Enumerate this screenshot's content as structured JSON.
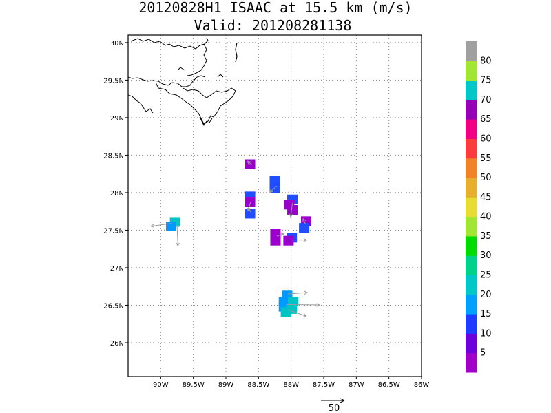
{
  "title": {
    "line1": "20120828H1 ISAAC at 15.5 km (m/s)",
    "line2": "Valid: 201208281138"
  },
  "map": {
    "lon_range": [
      -90.5,
      -86.0
    ],
    "lat_range": [
      25.55,
      30.1
    ],
    "x_ticks": [
      {
        "lon": -90.0,
        "label": "90W"
      },
      {
        "lon": -89.5,
        "label": "89.5W"
      },
      {
        "lon": -89.0,
        "label": "89W"
      },
      {
        "lon": -88.5,
        "label": "88.5W"
      },
      {
        "lon": -88.0,
        "label": "88W"
      },
      {
        "lon": -87.5,
        "label": "87.5W"
      },
      {
        "lon": -87.0,
        "label": "87W"
      },
      {
        "lon": -86.5,
        "label": "86.5W"
      },
      {
        "lon": -86.0,
        "label": "86W"
      }
    ],
    "y_ticks": [
      {
        "lat": 26.0,
        "label": "26N"
      },
      {
        "lat": 26.5,
        "label": "26.5N"
      },
      {
        "lat": 27.0,
        "label": "27N"
      },
      {
        "lat": 27.5,
        "label": "27.5N"
      },
      {
        "lat": 28.0,
        "label": "28N"
      },
      {
        "lat": 28.5,
        "label": "28.5N"
      },
      {
        "lat": 29.0,
        "label": "29N"
      },
      {
        "lat": 29.5,
        "label": "29.5N"
      },
      {
        "lat": 30.0,
        "label": "30N"
      }
    ],
    "grid": "dotted",
    "coastline_color": "#000000",
    "cells": [
      {
        "lon": -88.63,
        "lat": 28.38,
        "color": "#9900cc"
      },
      {
        "lon": -88.25,
        "lat": 28.16,
        "color": "#1f4dff"
      },
      {
        "lon": -88.25,
        "lat": 28.06,
        "color": "#1f4dff"
      },
      {
        "lon": -88.63,
        "lat": 27.95,
        "color": "#1f4dff"
      },
      {
        "lon": -88.63,
        "lat": 27.88,
        "color": "#9900cc"
      },
      {
        "lon": -88.63,
        "lat": 27.72,
        "color": "#1f4dff"
      },
      {
        "lon": -87.98,
        "lat": 27.91,
        "color": "#1f4dff"
      },
      {
        "lon": -88.03,
        "lat": 27.84,
        "color": "#9900cc"
      },
      {
        "lon": -87.98,
        "lat": 27.77,
        "color": "#9900cc"
      },
      {
        "lon": -87.77,
        "lat": 27.62,
        "color": "#9900cc"
      },
      {
        "lon": -87.8,
        "lat": 27.53,
        "color": "#1f4dff"
      },
      {
        "lon": -88.24,
        "lat": 27.45,
        "color": "#9900cc"
      },
      {
        "lon": -88.24,
        "lat": 27.36,
        "color": "#9900cc"
      },
      {
        "lon": -87.99,
        "lat": 27.4,
        "color": "#1f4dff"
      },
      {
        "lon": -88.04,
        "lat": 27.36,
        "color": "#9900cc"
      },
      {
        "lon": -89.78,
        "lat": 27.61,
        "color": "#00c4c4"
      },
      {
        "lon": -89.84,
        "lat": 27.55,
        "color": "#0099ff"
      },
      {
        "lon": -88.06,
        "lat": 26.63,
        "color": "#0099ff"
      },
      {
        "lon": -88.11,
        "lat": 26.55,
        "color": "#0099ff"
      },
      {
        "lon": -88.11,
        "lat": 26.48,
        "color": "#0099ff"
      },
      {
        "lon": -88.04,
        "lat": 26.48,
        "color": "#0099ff"
      },
      {
        "lon": -88.08,
        "lat": 26.41,
        "color": "#00c4c4"
      },
      {
        "lon": -87.99,
        "lat": 26.45,
        "color": "#00c4c4"
      },
      {
        "lon": -87.97,
        "lat": 26.55,
        "color": "#00c4c4"
      }
    ],
    "vectors": [
      {
        "lon": -88.6,
        "lat": 28.37,
        "u": -10,
        "v": 8
      },
      {
        "lon": -88.22,
        "lat": 28.09,
        "u": -15,
        "v": -14
      },
      {
        "lon": -88.62,
        "lat": 27.88,
        "u": -6,
        "v": -20
      },
      {
        "lon": -88.62,
        "lat": 27.74,
        "u": -5,
        "v": 10
      },
      {
        "lon": -87.98,
        "lat": 27.86,
        "u": -4,
        "v": -30
      },
      {
        "lon": -87.78,
        "lat": 27.58,
        "u": -5,
        "v": 12
      },
      {
        "lon": -89.83,
        "lat": 27.59,
        "u": -45,
        "v": -6
      },
      {
        "lon": -89.75,
        "lat": 27.57,
        "u": 2,
        "v": -45
      },
      {
        "lon": -88.22,
        "lat": 27.42,
        "u": 15,
        "v": 5
      },
      {
        "lon": -87.99,
        "lat": 27.37,
        "u": 32,
        "v": 0
      },
      {
        "lon": -88.05,
        "lat": 26.65,
        "u": 42,
        "v": 3
      },
      {
        "lon": -88.08,
        "lat": 26.51,
        "u": 72,
        "v": -1
      },
      {
        "lon": -88.05,
        "lat": 26.44,
        "u": 40,
        "v": -14
      }
    ],
    "reference_vector": {
      "label": "50",
      "magnitude": 50
    }
  },
  "colorbar": {
    "labels": [
      "5",
      "10",
      "15",
      "20",
      "25",
      "30",
      "35",
      "40",
      "45",
      "50",
      "55",
      "60",
      "65",
      "70",
      "75",
      "80"
    ],
    "colors": [
      "#a000c8",
      "#6e00dc",
      "#1e3cff",
      "#00a0ff",
      "#00c8c8",
      "#00d28c",
      "#00dc00",
      "#a0e632",
      "#e6dc32",
      "#e6af2d",
      "#f08228",
      "#fa3c3c",
      "#f00082",
      "#9600b4",
      "#00c8c8",
      "#a0e632",
      "#a0a0a0"
    ]
  }
}
